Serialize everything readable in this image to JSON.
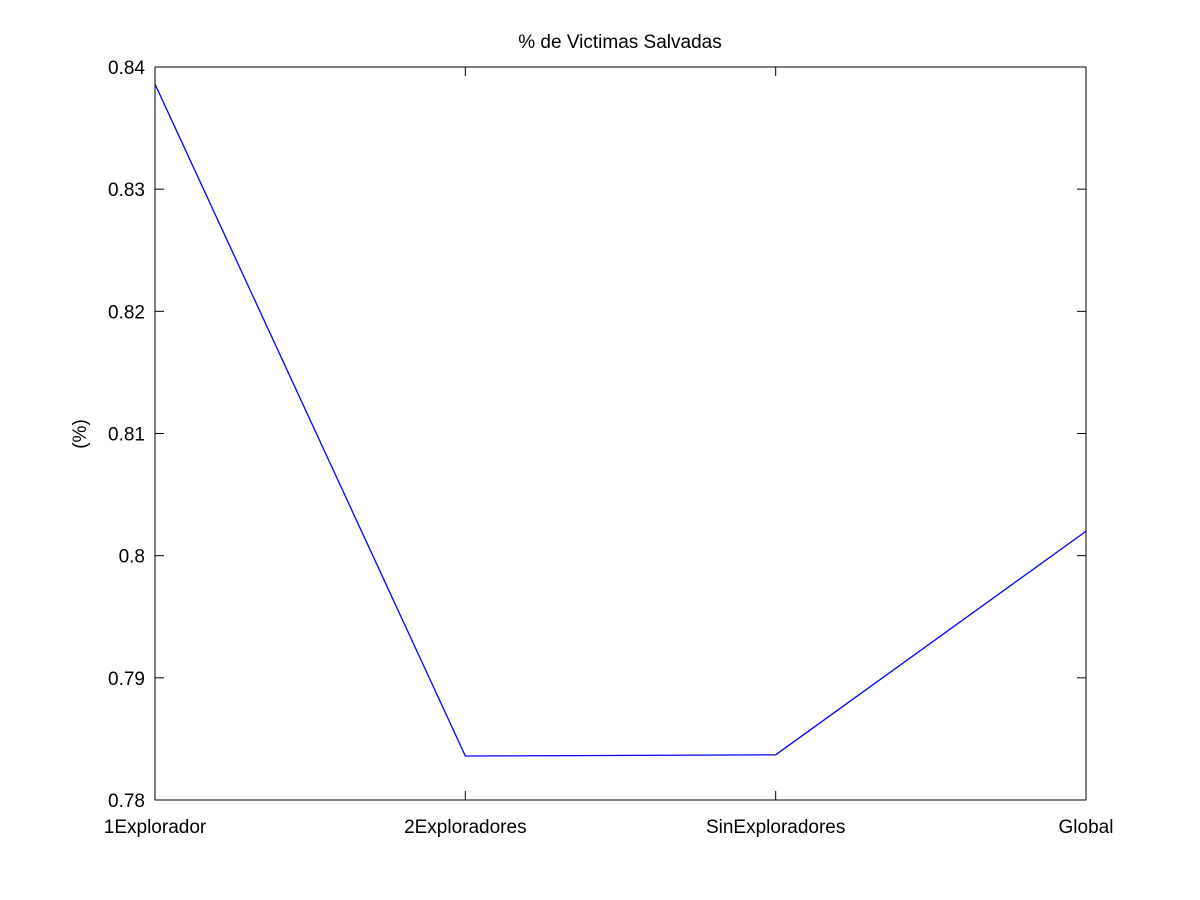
{
  "chart_data": {
    "type": "line",
    "title": "% de Victimas Salvadas",
    "xlabel": "",
    "ylabel": "(%)",
    "categories": [
      "1Explorador",
      "2Exploradores",
      "SinExploradores",
      "Global"
    ],
    "series": [
      {
        "values": [
          0.8386,
          0.7836,
          0.7837,
          0.802
        ]
      }
    ],
    "ylim": [
      0.78,
      0.84
    ],
    "yticks": [
      0.78,
      0.79,
      0.8,
      0.81,
      0.82,
      0.83,
      0.84
    ],
    "ytick_labels": [
      "0.78",
      "0.79",
      "0.8",
      "0.81",
      "0.82",
      "0.83",
      "0.84"
    ],
    "grid": false,
    "line_color": "#0000ff",
    "axis_color": "#000000"
  }
}
